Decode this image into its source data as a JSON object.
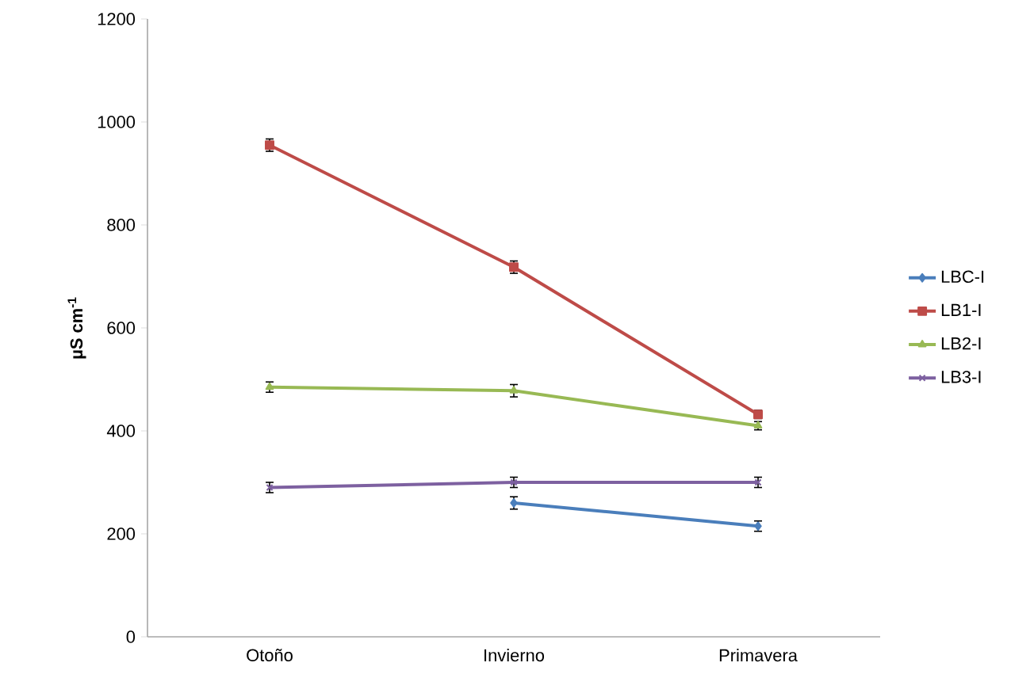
{
  "chart_data": {
    "type": "line",
    "ylabel": "µS cm$^{-1}$",
    "categories": [
      "Otoño",
      "Invierno",
      "Primavera"
    ],
    "series": [
      {
        "name": "LBC-I",
        "color": "#4a7ebb",
        "marker": "diamond",
        "values": [
          null,
          260,
          215
        ],
        "errors": [
          null,
          12,
          10
        ]
      },
      {
        "name": "LB1-I",
        "color": "#be4b48",
        "marker": "square",
        "values": [
          955,
          718,
          432
        ],
        "errors": [
          12,
          12,
          8
        ]
      },
      {
        "name": "LB2-I",
        "color": "#98b954",
        "marker": "triangle",
        "values": [
          485,
          478,
          410
        ],
        "errors": [
          10,
          12,
          8
        ]
      },
      {
        "name": "LB3-I",
        "color": "#7d60a0",
        "marker": "cross",
        "values": [
          290,
          300,
          300
        ],
        "errors": [
          10,
          10,
          10
        ]
      }
    ],
    "ylim": [
      0,
      1200
    ],
    "yticks": [
      0,
      200,
      400,
      600,
      800,
      1000,
      1200
    ],
    "legend": "right",
    "grid": false
  }
}
